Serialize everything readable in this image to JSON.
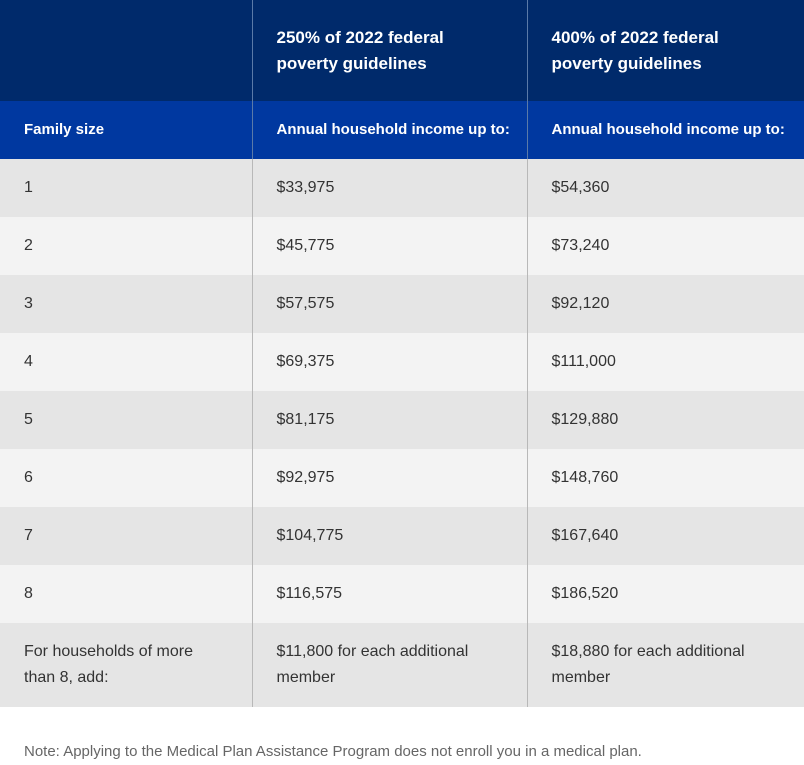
{
  "table": {
    "title_row": {
      "col1": "",
      "col2": "250% of 2022 federal poverty guidelines",
      "col3": "400% of 2022 federal poverty guidelines"
    },
    "header_row": {
      "col1": "Family size",
      "col2": "Annual household income up to:",
      "col3": "Annual household income up to:"
    },
    "rows": [
      {
        "size": "1",
        "pct250": "$33,975",
        "pct400": "$54,360"
      },
      {
        "size": "2",
        "pct250": "$45,775",
        "pct400": "$73,240"
      },
      {
        "size": "3",
        "pct250": "$57,575",
        "pct400": "$92,120"
      },
      {
        "size": "4",
        "pct250": "$69,375",
        "pct400": "$111,000"
      },
      {
        "size": "5",
        "pct250": "$81,175",
        "pct400": "$129,880"
      },
      {
        "size": "6",
        "pct250": "$92,975",
        "pct400": "$148,760"
      },
      {
        "size": "7",
        "pct250": "$104,775",
        "pct400": "$167,640"
      },
      {
        "size": "8",
        "pct250": "$116,575",
        "pct400": "$186,520"
      }
    ],
    "extra_row": {
      "label": "For households of more than 8, add:",
      "pct250": "$11,800 for each additional member",
      "pct400": "$18,880 for each additional member"
    }
  },
  "note": "Note: Applying to the Medical Plan Assistance Program does not enroll you in a medical plan."
}
